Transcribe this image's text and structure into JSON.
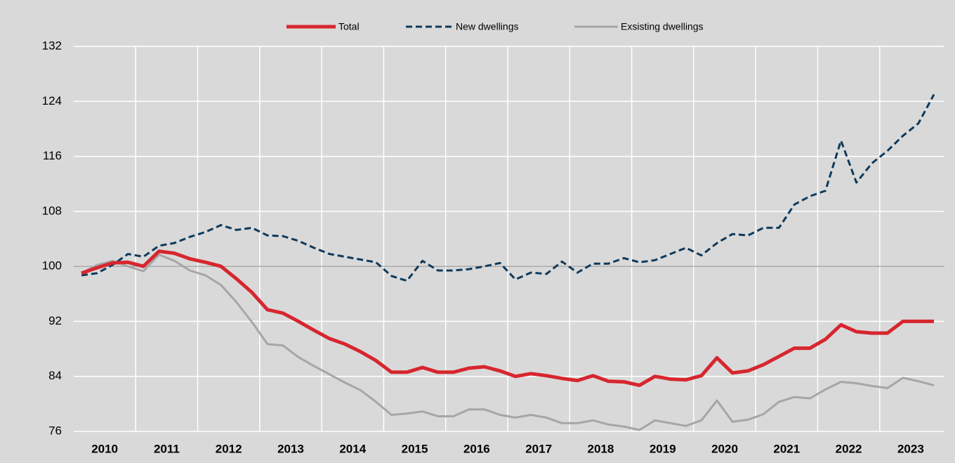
{
  "chart_data": {
    "type": "line",
    "categories": [
      "2010",
      null,
      null,
      null,
      "2011",
      null,
      null,
      null,
      "2012",
      null,
      null,
      null,
      "2013",
      null,
      null,
      null,
      "2014",
      null,
      null,
      null,
      "2015",
      null,
      null,
      null,
      "2016",
      null,
      null,
      null,
      "2017",
      null,
      null,
      null,
      "2018",
      null,
      null,
      null,
      "2019",
      null,
      null,
      null,
      "2020",
      null,
      null,
      null,
      "2021",
      null,
      null,
      null,
      "2022",
      null,
      null,
      null,
      "2023",
      null,
      null,
      null
    ],
    "series": [
      {
        "name": "Total",
        "color": "#d7262f",
        "linestyle": "solid",
        "values": [
          99.0,
          99.8,
          100.5,
          100.6,
          100.0,
          102.2,
          101.9,
          101.1,
          100.6,
          100.0,
          98.2,
          96.2,
          93.7,
          93.2,
          92.0,
          90.7,
          89.5,
          88.7,
          87.6,
          86.3,
          84.6,
          84.6,
          85.3,
          84.6,
          84.6,
          85.2,
          85.4,
          84.8,
          84.0,
          84.4,
          84.1,
          83.7,
          83.4,
          84.1,
          83.3,
          83.2,
          82.7,
          84.0,
          83.6,
          83.5,
          84.1,
          86.7,
          84.5,
          84.8,
          85.7,
          86.9,
          88.1,
          88.1,
          89.4,
          91.5,
          90.5,
          90.3,
          90.3,
          92.0,
          92.0,
          92.0
        ]
      },
      {
        "name": "New dwellings",
        "color": "#0d3a5c",
        "linestyle": "dashed",
        "values": [
          98.7,
          99.0,
          100.2,
          101.8,
          101.4,
          103.0,
          103.4,
          104.3,
          105.0,
          106.0,
          105.3,
          105.6,
          104.5,
          104.4,
          103.7,
          102.7,
          101.8,
          101.4,
          101.0,
          100.6,
          98.6,
          97.9,
          100.8,
          99.4,
          99.4,
          99.6,
          100.0,
          100.5,
          98.1,
          99.1,
          98.9,
          100.7,
          99.1,
          100.4,
          100.4,
          101.2,
          100.6,
          100.9,
          101.8,
          102.7,
          101.6,
          103.4,
          104.7,
          104.5,
          105.6,
          105.6,
          109.0,
          110.2,
          111.0,
          118.3,
          112.2,
          115.0,
          116.8,
          119.0,
          120.8,
          125.0
        ]
      },
      {
        "name": "Exsisting dwellings",
        "color": "#a6a6a6",
        "linestyle": "solid",
        "values": [
          99.0,
          100.2,
          100.8,
          100.0,
          99.3,
          101.7,
          100.8,
          99.4,
          98.7,
          97.3,
          94.8,
          91.9,
          88.7,
          88.5,
          86.8,
          85.5,
          84.3,
          83.1,
          82.0,
          80.3,
          78.4,
          78.6,
          78.9,
          78.2,
          78.2,
          79.2,
          79.2,
          78.4,
          78.0,
          78.4,
          78.0,
          77.2,
          77.2,
          77.6,
          77.0,
          76.7,
          76.2,
          77.6,
          77.2,
          76.8,
          77.6,
          80.5,
          77.4,
          77.7,
          78.5,
          80.3,
          81.0,
          80.8,
          82.1,
          83.2,
          83.0,
          82.6,
          82.3,
          83.8,
          83.3,
          82.7
        ]
      }
    ],
    "ylim": [
      76,
      132
    ],
    "yticks": [
      76,
      84,
      92,
      100,
      108,
      116,
      124,
      132
    ],
    "grid": true,
    "hline": 100,
    "legend": "top"
  }
}
